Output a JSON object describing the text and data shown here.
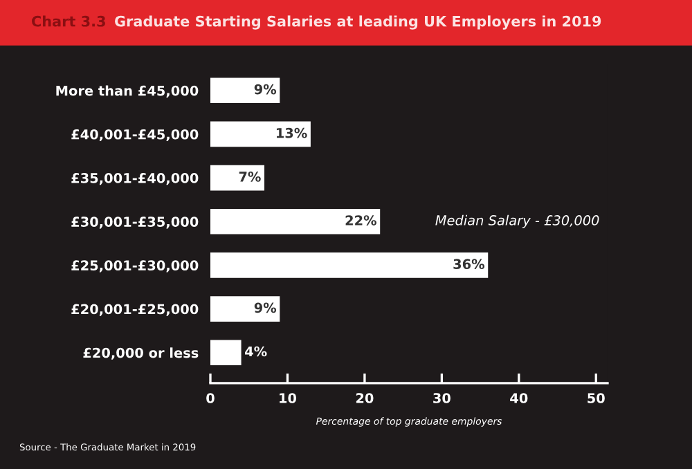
{
  "chart_data": {
    "type": "bar",
    "orientation": "horizontal",
    "title": "Graduate Starting Salaries at leading UK Employers in 2019",
    "xlabel": "Percentage of top graduate employers",
    "categories": [
      "More than £45,000",
      "£40,001-£45,000",
      "£35,001-£40,000",
      "£30,001-£35,000",
      "£25,001-£30,000",
      "£20,001-£25,000",
      "£20,000 or less"
    ],
    "values": [
      9,
      13,
      7,
      22,
      36,
      9,
      4
    ],
    "color": "#ffffff",
    "value_labels": [
      "9%",
      "13%",
      "7%",
      "22%",
      "36%",
      "9%",
      "4%"
    ],
    "xlim": [
      0,
      51.5
    ],
    "xticks": [
      0,
      10,
      20,
      30,
      40,
      50
    ],
    "grid": false,
    "annotations": [
      "Chart 3.3",
      "Median Salary - £30,000",
      "Source - The Graduate Market in 2019"
    ]
  }
}
